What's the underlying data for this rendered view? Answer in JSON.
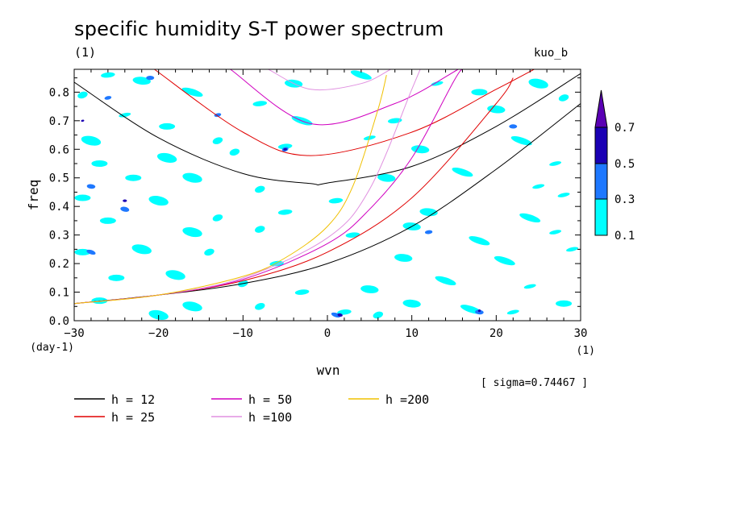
{
  "header": {
    "title": "specific humidity S-T power spectrum",
    "subtitle_unit": "(1)",
    "model": "kuo_b",
    "sigma_note": "[ sigma=0.74467 ]"
  },
  "colors": {
    "shade_low": "#00ffff",
    "shade_mid": "#1e78ff",
    "shade_high": "#1a00b4",
    "shade_top": "#5a00b4",
    "h12": "#000000",
    "h25": "#e00000",
    "h50": "#d000c0",
    "h100": "#e090e0",
    "h200": "#f0c000"
  },
  "chart_data": {
    "type": "contour",
    "title": "specific humidity S-T power spectrum",
    "xlabel": "wvn",
    "x_unit": "(1)",
    "ylabel": "freq",
    "y_unit": "(day-1)",
    "xlim": [
      -30,
      30
    ],
    "ylim": [
      0.0,
      0.88
    ],
    "xticks": [
      -30,
      -20,
      -10,
      0,
      10,
      20,
      30
    ],
    "yticks": [
      0.0,
      0.1,
      0.2,
      0.3,
      0.4,
      0.5,
      0.6,
      0.7,
      0.8
    ],
    "ytick_labels": [
      "0.0",
      "0.1",
      "0.2",
      "0.3",
      "0.4",
      "0.5",
      "0.6",
      "0.7",
      "0.8"
    ],
    "shading": {
      "levels": [
        "0.1",
        "0.3",
        "0.5",
        "0.7"
      ],
      "colors": [
        "#00ffff",
        "#1e78ff",
        "#1a00b4",
        "#5a00b4"
      ]
    },
    "series": [
      {
        "name": "h = 12",
        "h": 12,
        "color": "#000000"
      },
      {
        "name": "h = 25",
        "h": 25,
        "color": "#e00000"
      },
      {
        "name": "h = 50",
        "h": 50,
        "color": "#d000c0"
      },
      {
        "name": "h =100",
        "h": 100,
        "color": "#e090e0"
      },
      {
        "name": "h =200",
        "h": 200,
        "color": "#f0c000"
      }
    ],
    "curves": [
      {
        "series": "h = 12",
        "kind": "inertia-gravity",
        "x": [
          -30,
          -20,
          -10,
          -2,
          0,
          10,
          20,
          30
        ],
        "y": [
          0.835,
          0.64,
          0.515,
          0.48,
          0.482,
          0.54,
          0.68,
          0.865
        ]
      },
      {
        "series": "h = 12",
        "kind": "kelvin-like",
        "x": [
          -30,
          -20,
          -10,
          0,
          10,
          20,
          30
        ],
        "y": [
          0.06,
          0.09,
          0.13,
          0.2,
          0.33,
          0.53,
          0.76
        ]
      },
      {
        "series": "h = 25",
        "kind": "inertia-gravity",
        "x": [
          -20.5,
          -10,
          -2,
          10,
          20,
          24.5
        ],
        "y": [
          0.88,
          0.66,
          0.578,
          0.66,
          0.81,
          0.88
        ]
      },
      {
        "series": "h = 25",
        "kind": "kelvin-like",
        "x": [
          -30,
          -20,
          -10,
          0,
          10,
          20,
          22
        ],
        "y": [
          0.06,
          0.09,
          0.14,
          0.24,
          0.43,
          0.76,
          0.85
        ]
      },
      {
        "series": "h = 50",
        "kind": "inertia-gravity",
        "x": [
          -11.5,
          -2,
          8,
          15.5
        ],
        "y": [
          0.88,
          0.69,
          0.76,
          0.88
        ]
      },
      {
        "series": "h = 50",
        "kind": "kelvin-like",
        "x": [
          -30,
          -20,
          -10,
          0,
          5,
          10,
          15,
          16
        ],
        "y": [
          0.06,
          0.09,
          0.145,
          0.27,
          0.39,
          0.57,
          0.84,
          0.88
        ]
      },
      {
        "series": "h =100",
        "kind": "inertia-gravity",
        "x": [
          -7,
          -2,
          4,
          7.5
        ],
        "y": [
          0.88,
          0.81,
          0.83,
          0.88
        ]
      },
      {
        "series": "h =100",
        "kind": "kelvin-like",
        "x": [
          -30,
          -20,
          -10,
          0,
          5,
          10,
          11
        ],
        "y": [
          0.06,
          0.09,
          0.15,
          0.29,
          0.46,
          0.81,
          0.88
        ]
      },
      {
        "series": "h =200",
        "kind": "kelvin-like",
        "x": [
          -30,
          -20,
          -10,
          -5,
          0,
          3,
          6,
          7
        ],
        "y": [
          0.06,
          0.09,
          0.155,
          0.22,
          0.33,
          0.47,
          0.74,
          0.86
        ]
      }
    ],
    "patches": {
      "note": "approximate shaded spectral-power patches, data units",
      "level1": [
        [
          -29,
          0.79
        ],
        [
          -26,
          0.86
        ],
        [
          -22,
          0.84
        ],
        [
          -16,
          0.8
        ],
        [
          -24,
          0.72
        ],
        [
          -19,
          0.68
        ],
        [
          -28,
          0.63
        ],
        [
          -13,
          0.63
        ],
        [
          -8,
          0.76
        ],
        [
          -4,
          0.83
        ],
        [
          4,
          0.86
        ],
        [
          13,
          0.83
        ],
        [
          18,
          0.8
        ],
        [
          25,
          0.83
        ],
        [
          28,
          0.78
        ],
        [
          8,
          0.7
        ],
        [
          20,
          0.74
        ],
        [
          -3,
          0.7
        ],
        [
          5,
          0.64
        ],
        [
          -27,
          0.55
        ],
        [
          -19,
          0.57
        ],
        [
          -11,
          0.59
        ],
        [
          -5,
          0.61
        ],
        [
          11,
          0.6
        ],
        [
          23,
          0.63
        ],
        [
          27,
          0.55
        ],
        [
          -23,
          0.5
        ],
        [
          -16,
          0.5
        ],
        [
          -8,
          0.46
        ],
        [
          1,
          0.42
        ],
        [
          7,
          0.5
        ],
        [
          16,
          0.52
        ],
        [
          25,
          0.47
        ],
        [
          -29,
          0.43
        ],
        [
          -20,
          0.42
        ],
        [
          -13,
          0.36
        ],
        [
          -5,
          0.38
        ],
        [
          12,
          0.38
        ],
        [
          24,
          0.36
        ],
        [
          28,
          0.44
        ],
        [
          -26,
          0.35
        ],
        [
          -16,
          0.31
        ],
        [
          -8,
          0.32
        ],
        [
          3,
          0.3
        ],
        [
          10,
          0.33
        ],
        [
          18,
          0.28
        ],
        [
          27,
          0.31
        ],
        [
          -29,
          0.24
        ],
        [
          -22,
          0.25
        ],
        [
          -14,
          0.24
        ],
        [
          -6,
          0.2
        ],
        [
          9,
          0.22
        ],
        [
          21,
          0.21
        ],
        [
          29,
          0.25
        ],
        [
          -25,
          0.15
        ],
        [
          -18,
          0.16
        ],
        [
          -10,
          0.13
        ],
        [
          -3,
          0.1
        ],
        [
          5,
          0.11
        ],
        [
          14,
          0.14
        ],
        [
          24,
          0.12
        ],
        [
          -27,
          0.07
        ],
        [
          -16,
          0.05
        ],
        [
          -8,
          0.05
        ],
        [
          2,
          0.03
        ],
        [
          10,
          0.06
        ],
        [
          17,
          0.04
        ],
        [
          22,
          0.03
        ],
        [
          28,
          0.06
        ],
        [
          -20,
          0.02
        ],
        [
          6,
          0.02
        ]
      ],
      "level2": [
        [
          -28,
          0.47
        ],
        [
          -28,
          0.24
        ],
        [
          -26,
          0.78
        ],
        [
          -21,
          0.85
        ],
        [
          -24,
          0.39
        ],
        [
          -5,
          0.6
        ],
        [
          12,
          0.31
        ],
        [
          18,
          0.03
        ],
        [
          1,
          0.02
        ],
        [
          -13,
          0.72
        ],
        [
          22,
          0.68
        ]
      ],
      "level3": [
        [
          -29,
          0.7
        ],
        [
          -24,
          0.42
        ],
        [
          1.5,
          0.02
        ],
        [
          18,
          0.035
        ],
        [
          -5,
          0.6
        ]
      ]
    }
  },
  "legend": {
    "items": [
      {
        "label": "h = 12",
        "color": "#000000"
      },
      {
        "label": "h = 25",
        "color": "#e00000"
      },
      {
        "label": "h = 50",
        "color": "#d000c0"
      },
      {
        "label": "h =100",
        "color": "#e090e0"
      },
      {
        "label": "h =200",
        "color": "#f0c000"
      }
    ]
  }
}
